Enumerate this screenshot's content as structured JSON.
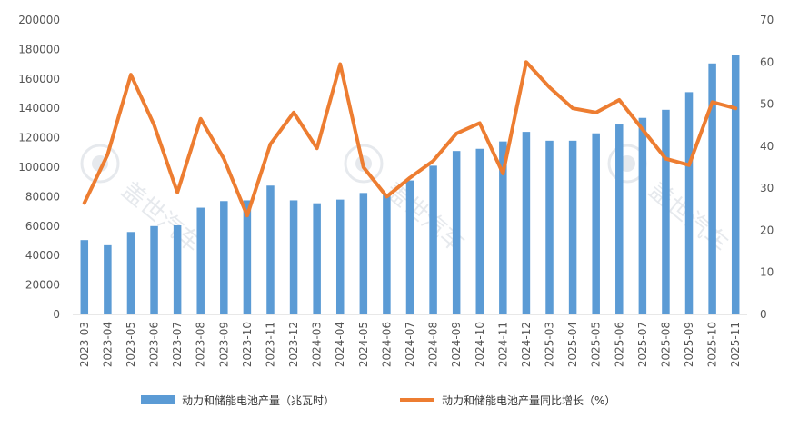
{
  "chart_data": {
    "type": "bar",
    "categories": [
      "2023-03",
      "2023-04",
      "2023-05",
      "2023-06",
      "2023-07",
      "2023-08",
      "2023-09",
      "2023-10",
      "2023-11",
      "2023-12",
      "2024-03",
      "2024-04",
      "2024-05",
      "2024-06",
      "2024-07",
      "2024-08",
      "2024-09",
      "2024-10",
      "2024-11",
      "2024-12",
      "2025-03",
      "2025-04",
      "2025-05",
      "2025-06",
      "2025-07",
      "2025-08",
      "2025-09",
      "2025-10",
      "2025-11"
    ],
    "series": [
      {
        "name": "动力和储能电池产量（兆瓦时）",
        "type": "bar",
        "axis": "left",
        "color": "#5b9bd5",
        "values": [
          50500,
          47000,
          56000,
          60000,
          60500,
          72500,
          77000,
          77500,
          87500,
          77500,
          75500,
          78000,
          82500,
          82000,
          91000,
          101000,
          111000,
          112500,
          117500,
          124000,
          118000,
          118000,
          123000,
          129000,
          133500,
          139000,
          151000,
          170500,
          176000
        ]
      },
      {
        "name": "动力和储能电池产量同比增长（%）",
        "type": "line",
        "axis": "right",
        "color": "#ed7d31",
        "values": [
          26.5,
          38,
          57,
          45,
          29,
          46.5,
          37,
          23.5,
          40.5,
          48,
          39.5,
          59.5,
          35,
          28,
          32.5,
          36.5,
          43,
          45.5,
          33.5,
          60,
          54,
          49,
          48,
          51,
          44,
          37,
          35.5,
          50.5,
          49
        ]
      }
    ],
    "y_left": {
      "min": 0,
      "max": 200000,
      "step": 20000,
      "tick_labels": [
        "0",
        "20000",
        "40000",
        "60000",
        "80000",
        "100000",
        "120000",
        "140000",
        "160000",
        "180000",
        "200000"
      ]
    },
    "y_right": {
      "min": 0,
      "max": 70,
      "step": 10,
      "tick_labels": [
        "0",
        "10",
        "20",
        "30",
        "40",
        "50",
        "60",
        "70"
      ]
    },
    "legend": {
      "position": "bottom",
      "bar_label": "动力和储能电池产量（兆瓦时）",
      "line_label": "动力和储能电池产量同比增长（%）"
    },
    "grid": false,
    "watermark_text": "盖世汽车"
  }
}
